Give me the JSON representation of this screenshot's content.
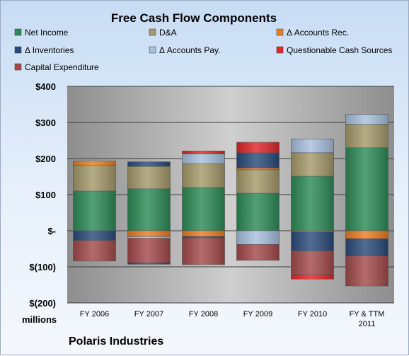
{
  "chart_data": {
    "type": "bar",
    "stacked": true,
    "title": "Free Cash Flow Components",
    "unit_label": "millions",
    "source_label": "Polaris Industries",
    "categories": [
      "FY 2006",
      "FY 2007",
      "FY 2008",
      "FY 2009",
      "FY 2010",
      "FY & TTM 2011"
    ],
    "ylim": [
      -200,
      400
    ],
    "y_ticks": [
      400,
      300,
      200,
      100,
      0,
      -100,
      -200
    ],
    "y_tick_labels": [
      "$400",
      "$300",
      "$200",
      "$100",
      "$-",
      "$(100)",
      "$(200)"
    ],
    "grid": true,
    "legend_position": "top",
    "series": [
      {
        "name": "Net Income",
        "color": "#2e8b57",
        "values": [
          110,
          116,
          120,
          104,
          151,
          230
        ]
      },
      {
        "name": "D&A",
        "color": "#a59a6b",
        "values": [
          71,
          62,
          66,
          65,
          65,
          65
        ]
      },
      {
        "name": "Δ Accounts Rec.",
        "color": "#ed7d22",
        "values": [
          12,
          -16,
          -16,
          5,
          -3,
          -22
        ]
      },
      {
        "name": "Δ Inventories",
        "color": "#2b4a7a",
        "values": [
          -27,
          13,
          -4,
          42,
          -53,
          -48
        ]
      },
      {
        "name": "Δ Accounts Pay.",
        "color": "#a9c0de",
        "values": [
          0,
          -5,
          27,
          -38,
          38,
          27
        ]
      },
      {
        "name": "Questionable Cash Sources",
        "color": "#e02629",
        "values": [
          0,
          0,
          8,
          29,
          0,
          0
        ]
      },
      {
        "name": "Capital Expenditure",
        "color": "#a44a4a",
        "values": [
          -57,
          -68,
          -74,
          -44,
          -65,
          -83
        ]
      }
    ],
    "extra_segments": [
      {
        "category_index": 1,
        "series_index": 3,
        "value": -4
      },
      {
        "category_index": 4,
        "series_index": 5,
        "value": -13
      }
    ]
  }
}
